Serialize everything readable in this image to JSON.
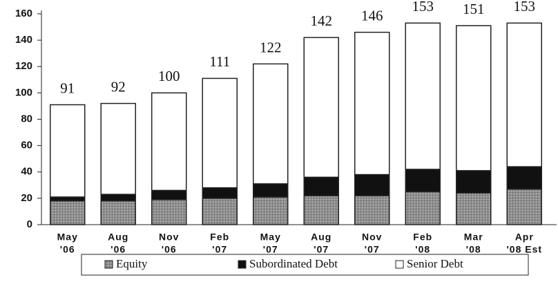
{
  "chart_data": {
    "type": "stacked_bar",
    "categories": [
      [
        "May",
        "'06"
      ],
      [
        "Aug",
        "'06"
      ],
      [
        "Nov",
        "'06"
      ],
      [
        "Feb",
        "'07"
      ],
      [
        "May",
        "'07"
      ],
      [
        "Aug",
        "'07"
      ],
      [
        "Nov",
        "'07"
      ],
      [
        "Feb",
        "'08"
      ],
      [
        "Mar",
        "'08"
      ],
      [
        "Apr",
        "'08 Est"
      ]
    ],
    "series": [
      {
        "name": "Equity",
        "color": "#9a9a9a",
        "values": [
          18,
          18,
          19,
          20,
          21,
          22,
          22,
          25,
          24,
          27
        ]
      },
      {
        "name": "Subordinated Debt",
        "color": "#111111",
        "values": [
          3,
          5,
          7,
          8,
          10,
          14,
          16,
          17,
          17,
          17
        ]
      },
      {
        "name": "Senior Debt",
        "color": "#ffffff",
        "values": [
          70,
          69,
          74,
          83,
          91,
          106,
          108,
          111,
          110,
          109
        ]
      }
    ],
    "totals": [
      91,
      92,
      100,
      111,
      122,
      142,
      146,
      153,
      151,
      153
    ],
    "ylim": [
      0,
      160
    ],
    "yticks": [
      0,
      20,
      40,
      60,
      80,
      100,
      120,
      140,
      160
    ]
  }
}
